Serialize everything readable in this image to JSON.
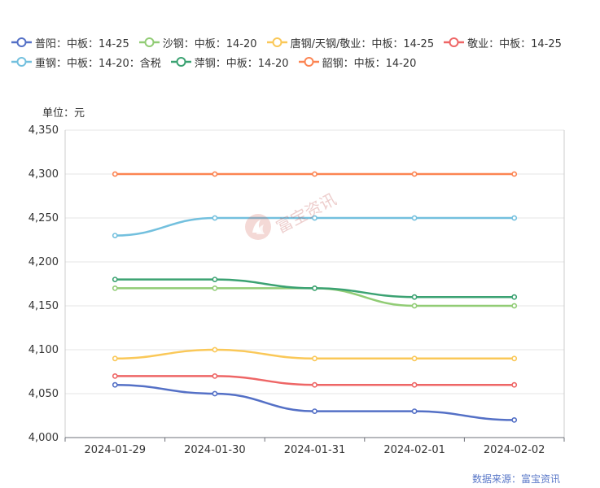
{
  "unit_label": "单位：元",
  "source_label": "数据来源：富宝资讯",
  "watermark_text": "富宝资讯",
  "chart_data": {
    "type": "line",
    "categories": [
      "2024-01-29",
      "2024-01-30",
      "2024-01-31",
      "2024-02-01",
      "2024-02-02"
    ],
    "ylim": [
      4000,
      4350
    ],
    "yticks": [
      4000,
      4050,
      4100,
      4150,
      4200,
      4250,
      4300,
      4350
    ],
    "ytick_labels": [
      "4,000",
      "4,050",
      "4,100",
      "4,150",
      "4,200",
      "4,250",
      "4,300",
      "4,350"
    ],
    "grid": true,
    "legend_position": "top",
    "series": [
      {
        "name": "普阳：中板：14-25",
        "color": "#5470c6",
        "values": [
          4060,
          4050,
          4030,
          4030,
          4020
        ]
      },
      {
        "name": "沙钢：中板：14-20",
        "color": "#91cc75",
        "values": [
          4170,
          4170,
          4170,
          4150,
          4150
        ]
      },
      {
        "name": "唐钢/天钢/敬业：中板：14-25",
        "color": "#fac858",
        "values": [
          4090,
          4100,
          4090,
          4090,
          4090
        ]
      },
      {
        "name": "敬业：中板：14-25",
        "color": "#ee6666",
        "values": [
          4070,
          4070,
          4060,
          4060,
          4060
        ]
      },
      {
        "name": "重钢：中板：14-20：含税",
        "color": "#73c0de",
        "values": [
          4230,
          4250,
          4250,
          4250,
          4250
        ]
      },
      {
        "name": "萍钢：中板：14-20",
        "color": "#3ba272",
        "values": [
          4180,
          4180,
          4170,
          4160,
          4160
        ]
      },
      {
        "name": "韶钢：中板：14-20",
        "color": "#fc8452",
        "values": [
          4300,
          4300,
          4300,
          4300,
          4300
        ]
      }
    ]
  }
}
